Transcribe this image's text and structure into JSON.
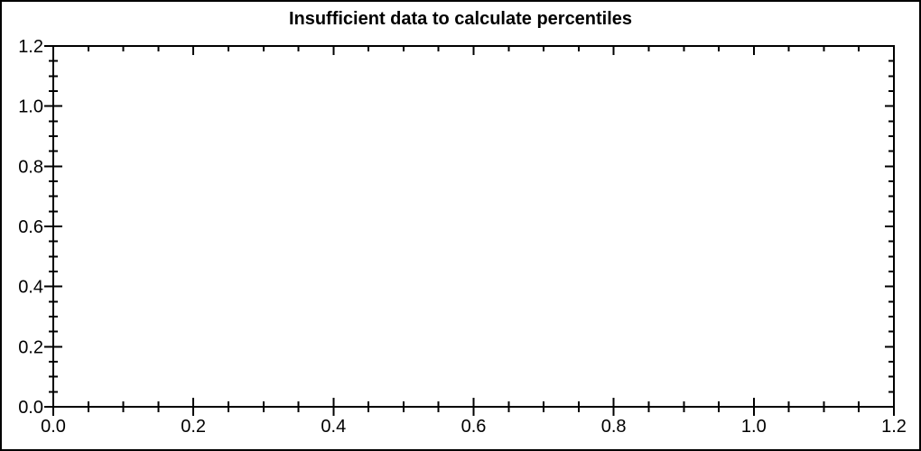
{
  "window": {
    "background_color": "#ffffff",
    "border_color": "#000000"
  },
  "chart_data": {
    "type": "scatter",
    "title": "Insufficient data to calculate percentiles",
    "series": [],
    "points": [],
    "xlabel": "",
    "ylabel": "",
    "xlim": [
      0.0,
      1.2
    ],
    "ylim": [
      0.0,
      1.2
    ],
    "xticks": [
      0.0,
      0.2,
      0.4,
      0.6,
      0.8,
      1.0,
      1.2
    ],
    "yticks": [
      0.0,
      0.2,
      0.4,
      0.6,
      0.8,
      1.0,
      1.2
    ],
    "xtick_labels": [
      "0.0",
      "0.2",
      "0.4",
      "0.6",
      "0.8",
      "1.0",
      "1.2"
    ],
    "ytick_labels": [
      "0.0",
      "0.2",
      "0.4",
      "0.6",
      "0.8",
      "1.0",
      "1.2"
    ],
    "minor_tick_step": 0.05,
    "grid": false,
    "legend": false,
    "frame": "box-with-ticks-all-sides",
    "axis_color": "#000000",
    "text_color": "#000000"
  }
}
